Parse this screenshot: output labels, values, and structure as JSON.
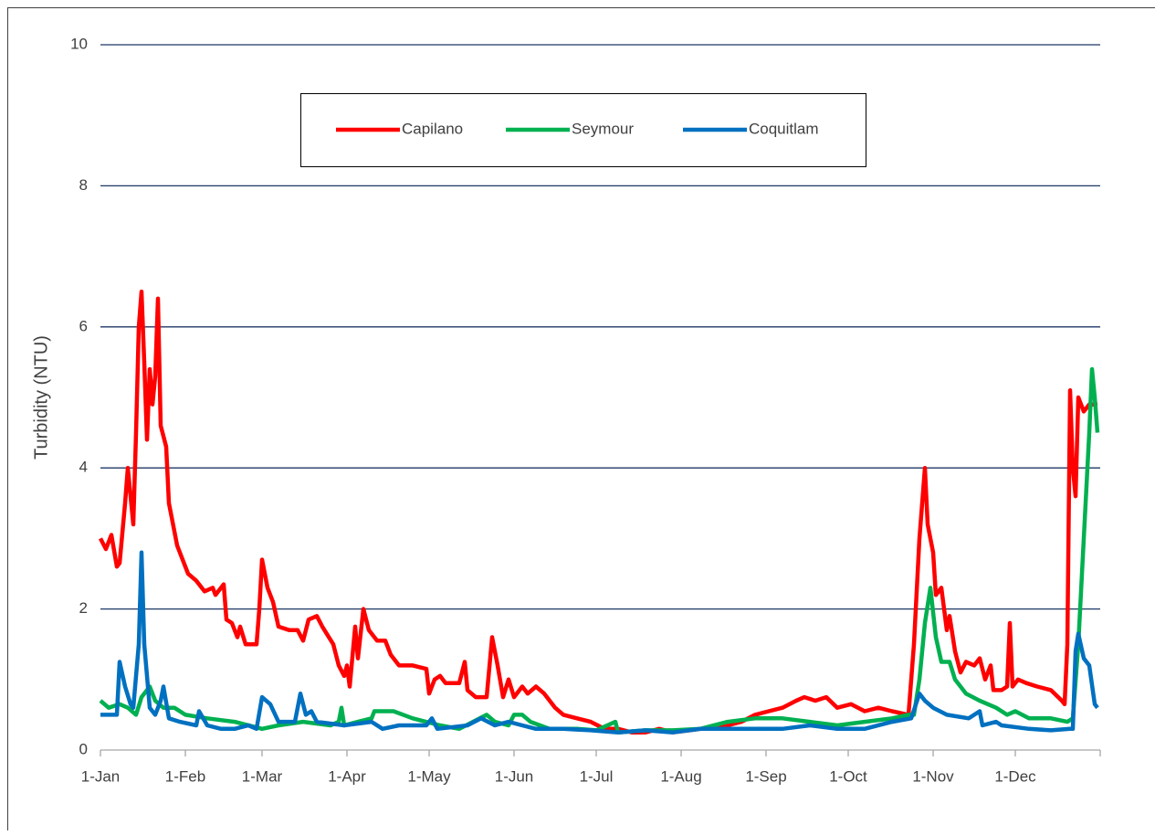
{
  "chart_data": {
    "type": "line",
    "ylabel": "Turbidity (NTU)",
    "xlim": [
      1,
      366
    ],
    "xticks": [
      {
        "value": 1,
        "label": "1-Jan"
      },
      {
        "value": 32,
        "label": "1-Feb"
      },
      {
        "value": 60,
        "label": "1-Mar"
      },
      {
        "value": 91,
        "label": "1-Apr"
      },
      {
        "value": 121,
        "label": "1-May"
      },
      {
        "value": 152,
        "label": "1-Jun"
      },
      {
        "value": 182,
        "label": "1-Jul"
      },
      {
        "value": 213,
        "label": "1-Aug"
      },
      {
        "value": 244,
        "label": "1-Sep"
      },
      {
        "value": 274,
        "label": "1-Oct"
      },
      {
        "value": 305,
        "label": "1-Nov"
      },
      {
        "value": 335,
        "label": "1-Dec"
      }
    ],
    "ylim": [
      0,
      10
    ],
    "yticks": [
      0,
      2,
      4,
      6,
      8,
      10
    ],
    "grid": true,
    "legend": "top",
    "series": [
      {
        "name": "Capilano",
        "color": "#ff0000",
        "x": [
          1,
          3,
          5,
          7,
          8,
          10,
          11,
          13,
          14,
          15,
          16,
          17,
          18,
          19,
          20,
          21,
          22,
          23,
          25,
          26,
          27,
          29,
          31,
          33,
          36,
          39,
          42,
          43,
          46,
          47,
          49,
          51,
          52,
          54,
          58,
          59,
          60,
          62,
          64,
          66,
          70,
          73,
          75,
          77,
          80,
          82,
          86,
          88,
          90,
          91,
          92,
          94,
          95,
          97,
          99,
          102,
          105,
          107,
          110,
          115,
          120,
          121,
          123,
          125,
          127,
          132,
          134,
          135,
          138,
          142,
          144,
          146,
          148,
          150,
          152,
          155,
          157,
          160,
          163,
          167,
          170,
          175,
          180,
          185,
          190,
          195,
          200,
          205,
          210,
          220,
          230,
          235,
          240,
          245,
          250,
          255,
          258,
          262,
          266,
          270,
          275,
          280,
          285,
          290,
          296,
          298,
          300,
          302,
          303,
          305,
          306,
          308,
          310,
          311,
          313,
          315,
          317,
          320,
          322,
          324,
          326,
          327,
          330,
          332,
          333,
          334,
          336,
          339,
          343,
          348,
          352,
          353,
          354,
          355,
          356,
          357,
          358,
          360,
          362,
          365
        ],
        "values": [
          3.0,
          2.85,
          3.05,
          2.6,
          2.65,
          3.5,
          4.0,
          3.2,
          4.5,
          6.0,
          6.5,
          5.5,
          4.4,
          5.4,
          4.9,
          5.3,
          6.4,
          4.6,
          4.3,
          3.5,
          3.3,
          2.9,
          2.7,
          2.5,
          2.4,
          2.25,
          2.3,
          2.2,
          2.35,
          1.85,
          1.8,
          1.6,
          1.75,
          1.5,
          1.5,
          2.0,
          2.7,
          2.3,
          2.1,
          1.75,
          1.7,
          1.7,
          1.55,
          1.85,
          1.9,
          1.75,
          1.5,
          1.2,
          1.05,
          1.2,
          0.9,
          1.75,
          1.3,
          2.0,
          1.7,
          1.55,
          1.55,
          1.35,
          1.2,
          1.2,
          1.15,
          0.8,
          1.0,
          1.05,
          0.95,
          0.95,
          1.25,
          0.85,
          0.75,
          0.75,
          1.6,
          1.2,
          0.75,
          1.0,
          0.75,
          0.9,
          0.8,
          0.9,
          0.8,
          0.6,
          0.5,
          0.45,
          0.4,
          0.3,
          0.3,
          0.25,
          0.25,
          0.3,
          0.25,
          0.3,
          0.35,
          0.4,
          0.5,
          0.55,
          0.6,
          0.7,
          0.75,
          0.7,
          0.75,
          0.6,
          0.65,
          0.55,
          0.6,
          0.55,
          0.5,
          1.5,
          3.0,
          4.0,
          3.2,
          2.8,
          2.2,
          2.3,
          1.7,
          1.9,
          1.4,
          1.1,
          1.25,
          1.2,
          1.3,
          1.0,
          1.2,
          0.85,
          0.85,
          0.9,
          1.8,
          0.9,
          1.0,
          0.95,
          0.9,
          0.85,
          0.7,
          0.65,
          1.5,
          5.1,
          4.0,
          3.6,
          5.0,
          4.8,
          4.9,
          4.9
        ]
      },
      {
        "name": "Seymour",
        "color": "#00b050",
        "x": [
          1,
          4,
          8,
          11,
          14,
          16,
          19,
          21,
          24,
          28,
          32,
          40,
          50,
          60,
          66,
          75,
          85,
          88,
          89,
          90,
          95,
          100,
          101,
          108,
          115,
          125,
          132,
          137,
          142,
          145,
          150,
          152,
          155,
          158,
          165,
          175,
          182,
          189,
          190,
          200,
          210,
          220,
          230,
          240,
          250,
          260,
          270,
          280,
          290,
          296,
          298,
          300,
          302,
          304,
          306,
          308,
          311,
          313,
          317,
          322,
          328,
          332,
          335,
          340,
          348,
          354,
          356,
          358,
          360,
          362,
          363,
          364,
          365
        ],
        "values": [
          0.7,
          0.6,
          0.65,
          0.6,
          0.5,
          0.75,
          0.9,
          0.7,
          0.6,
          0.6,
          0.5,
          0.45,
          0.4,
          0.3,
          0.35,
          0.4,
          0.35,
          0.4,
          0.6,
          0.35,
          0.4,
          0.45,
          0.55,
          0.55,
          0.45,
          0.35,
          0.3,
          0.4,
          0.5,
          0.4,
          0.35,
          0.5,
          0.5,
          0.4,
          0.3,
          0.3,
          0.28,
          0.4,
          0.25,
          0.28,
          0.28,
          0.3,
          0.4,
          0.45,
          0.45,
          0.4,
          0.35,
          0.4,
          0.45,
          0.5,
          0.5,
          1.0,
          1.8,
          2.3,
          1.6,
          1.25,
          1.25,
          1.0,
          0.8,
          0.7,
          0.6,
          0.5,
          0.55,
          0.45,
          0.45,
          0.4,
          0.45,
          1.5,
          3.0,
          4.5,
          5.4,
          5.0,
          4.5
        ]
      },
      {
        "name": "Coquitlam",
        "color": "#0070c0",
        "x": [
          1,
          5,
          7,
          8,
          10,
          12,
          13,
          15,
          16,
          17,
          19,
          21,
          23,
          24,
          26,
          30,
          36,
          37,
          40,
          45,
          50,
          55,
          58,
          60,
          63,
          66,
          72,
          74,
          76,
          78,
          80,
          90,
          100,
          104,
          110,
          120,
          122,
          124,
          135,
          140,
          145,
          150,
          155,
          160,
          170,
          180,
          190,
          200,
          210,
          220,
          240,
          250,
          260,
          270,
          280,
          290,
          297,
          300,
          302,
          305,
          310,
          318,
          322,
          323,
          328,
          330,
          340,
          348,
          355,
          356,
          357,
          358,
          360,
          362,
          364,
          365
        ],
        "values": [
          0.5,
          0.5,
          0.5,
          1.25,
          0.9,
          0.65,
          0.6,
          1.5,
          2.8,
          1.5,
          0.6,
          0.5,
          0.7,
          0.9,
          0.45,
          0.4,
          0.35,
          0.55,
          0.35,
          0.3,
          0.3,
          0.35,
          0.3,
          0.75,
          0.65,
          0.4,
          0.4,
          0.8,
          0.5,
          0.55,
          0.4,
          0.35,
          0.4,
          0.3,
          0.35,
          0.35,
          0.45,
          0.3,
          0.35,
          0.45,
          0.35,
          0.4,
          0.35,
          0.3,
          0.3,
          0.28,
          0.25,
          0.28,
          0.25,
          0.3,
          0.3,
          0.3,
          0.35,
          0.3,
          0.3,
          0.4,
          0.45,
          0.8,
          0.7,
          0.6,
          0.5,
          0.45,
          0.55,
          0.35,
          0.4,
          0.35,
          0.3,
          0.28,
          0.3,
          0.3,
          1.4,
          1.65,
          1.3,
          1.2,
          0.65,
          0.6
        ]
      }
    ]
  }
}
